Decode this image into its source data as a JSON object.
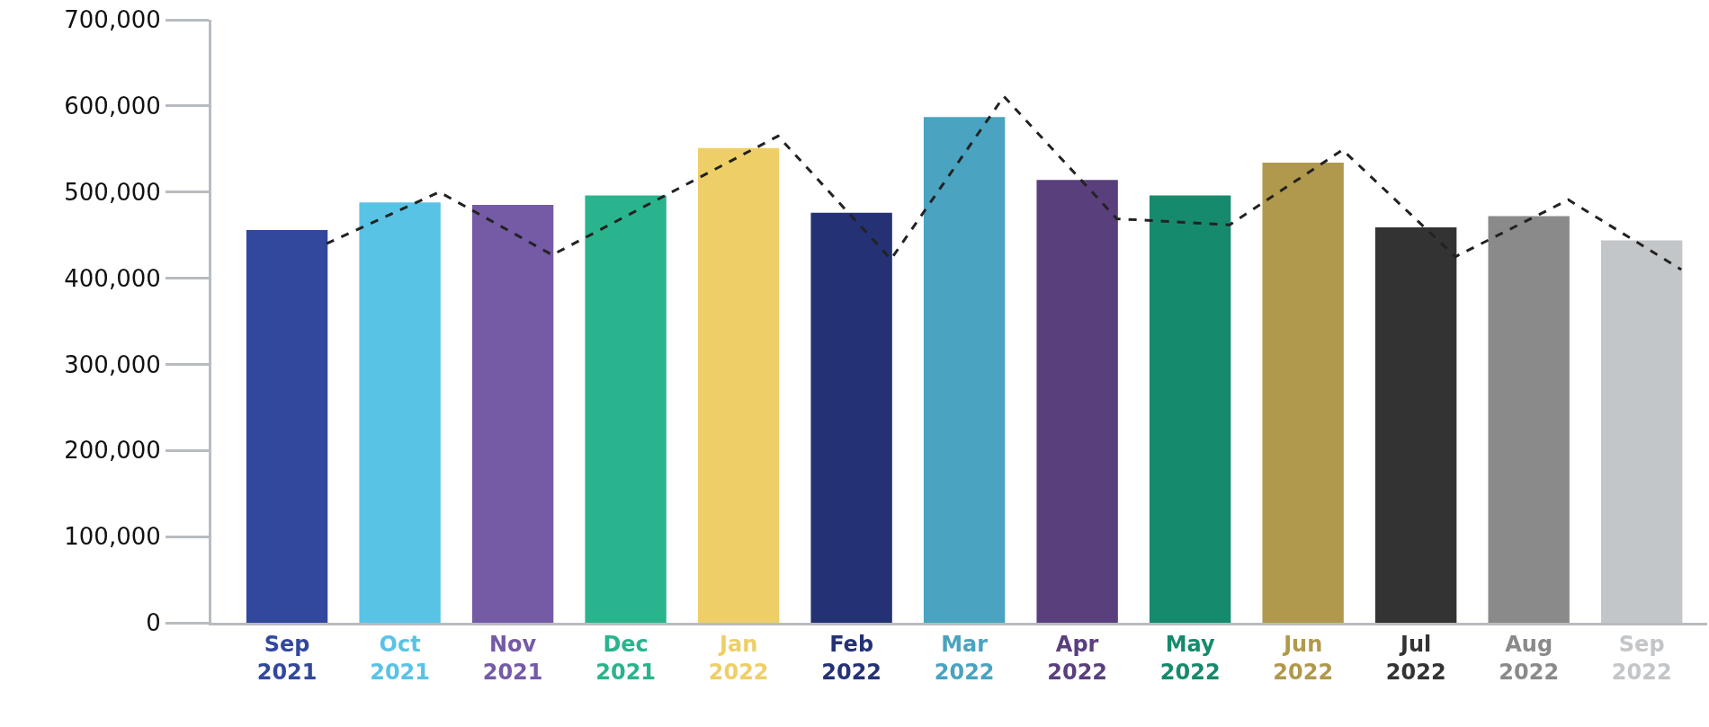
{
  "chart_data": {
    "type": "bar",
    "categories": [
      "Sep 2021",
      "Oct 2021",
      "Nov 2021",
      "Dec 2021",
      "Jan 2022",
      "Feb 2022",
      "Mar 2022",
      "Apr 2022",
      "May 2022",
      "Jun 2022",
      "Jul 2022",
      "Aug 2022",
      "Sep 2022"
    ],
    "series": [
      {
        "values": [
          456000,
          488000,
          485000,
          496000,
          551000,
          476000,
          587000,
          514000,
          496000,
          534000,
          459000,
          472000,
          444000
        ],
        "colors": [
          "#32489c",
          "#58c3e5",
          "#755aa6",
          "#2ab48e",
          "#eecf67",
          "#243275",
          "#4aa3c0",
          "#5a3f7d",
          "#168a6d",
          "#b0994c",
          "#333333",
          "#8a8a8a",
          "#c3c6c9"
        ]
      },
      {
        "type": "line",
        "color": "#222222",
        "line_style": "dashed",
        "marker": "none",
        "values": [
          440000,
          500000,
          427000,
          496000,
          565000,
          422000,
          611000,
          469000,
          462000,
          549000,
          425000,
          491000,
          410000
        ]
      }
    ],
    "ylim": [
      0,
      700000
    ],
    "yticks": [
      {
        "value": 0,
        "label": "0"
      },
      {
        "value": 100000,
        "label": "100,000"
      },
      {
        "value": 200000,
        "label": "200,000"
      },
      {
        "value": 300000,
        "label": "300,000"
      },
      {
        "value": 400000,
        "label": "400,000"
      },
      {
        "value": 500000,
        "label": "500,000"
      },
      {
        "value": 600000,
        "label": "600,000"
      },
      {
        "value": 700000,
        "label": "700,000"
      }
    ]
  }
}
